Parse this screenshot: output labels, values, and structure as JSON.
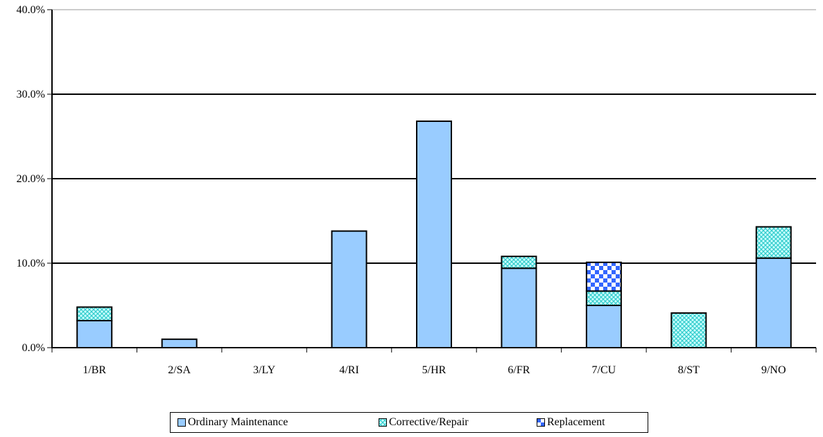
{
  "chart_data": {
    "type": "bar",
    "stacked": true,
    "categories": [
      "1/BR",
      "2/SA",
      "3/LY",
      "4/RI",
      "5/HR",
      "6/FR",
      "7/CU",
      "8/ST",
      "9/NO"
    ],
    "series": [
      {
        "name": "Ordinary Maintenance",
        "values": [
          3.2,
          1.0,
          0.0,
          13.8,
          26.8,
          9.4,
          5.0,
          0.0,
          10.6
        ]
      },
      {
        "name": "Corrective/Repair",
        "values": [
          1.6,
          0.0,
          0.0,
          0.0,
          0.0,
          1.4,
          1.7,
          4.1,
          3.7
        ]
      },
      {
        "name": "Replacement",
        "values": [
          0.0,
          0.0,
          0.0,
          0.0,
          0.0,
          0.0,
          3.4,
          0.0,
          0.0
        ]
      }
    ],
    "yticks": [
      "0.0%",
      "10.0%",
      "20.0%",
      "30.0%",
      "40.0%"
    ],
    "ylim": [
      0,
      40
    ],
    "grid": true,
    "legend_position": "bottom",
    "colors": {
      "ordinary": "#99ccff",
      "repair_bg": "#ccffff",
      "repair_pattern": "#33cccc",
      "replacement_bg": "#ffffff",
      "replacement_pattern": "#3366ff"
    }
  }
}
